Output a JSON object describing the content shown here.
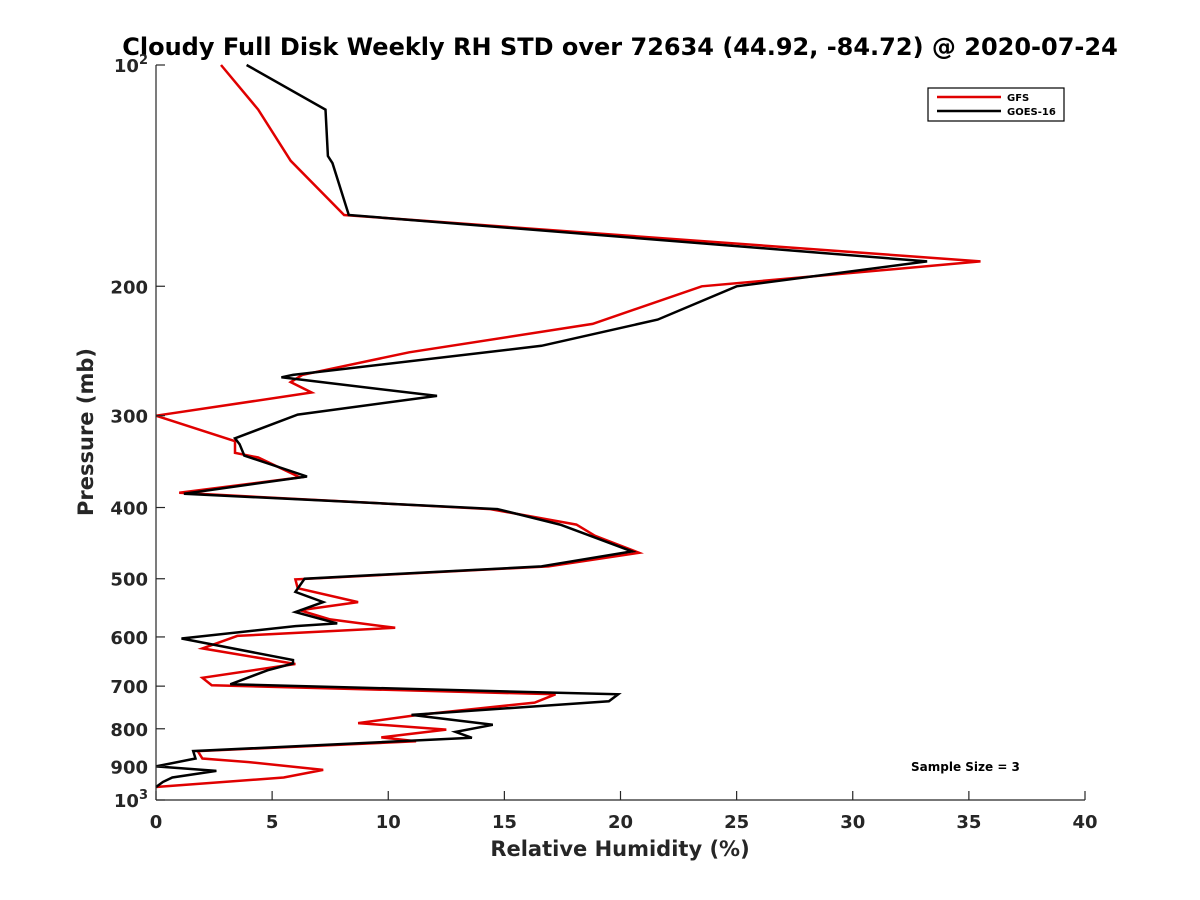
{
  "chart_data": {
    "type": "line",
    "title": "Cloudy Full Disk Weekly RH STD over 72634 (44.92, -84.72) @ 2020-07-24",
    "xlabel": "Relative Humidity (%)",
    "ylabel": "Pressure (mb)",
    "xlim": [
      0,
      40
    ],
    "ylim": [
      100,
      1000
    ],
    "yscale": "log",
    "y_reversed": true,
    "x_ticks": [
      "0",
      "5",
      "10",
      "15",
      "20",
      "25",
      "30",
      "35",
      "40"
    ],
    "y_ticks": [
      {
        "value": 100,
        "base": "10",
        "exp": "2"
      },
      {
        "value": 200,
        "label": "200"
      },
      {
        "value": 300,
        "label": "300"
      },
      {
        "value": 400,
        "label": "400"
      },
      {
        "value": 500,
        "label": "500"
      },
      {
        "value": 600,
        "label": "600"
      },
      {
        "value": 700,
        "label": "700"
      },
      {
        "value": 800,
        "label": "800"
      },
      {
        "value": 900,
        "label": "900"
      },
      {
        "value": 1000,
        "base": "10",
        "exp": "3"
      }
    ],
    "grid": false,
    "legend_position": "top-right",
    "annotation": "Sample Size = 3",
    "series": [
      {
        "name": "GFS",
        "color": "#e00000",
        "points": [
          [
            2.8,
            100
          ],
          [
            4.4,
            115
          ],
          [
            5.8,
            135
          ],
          [
            8.1,
            160
          ],
          [
            35.5,
            185
          ],
          [
            23.5,
            200
          ],
          [
            18.8,
            225
          ],
          [
            10.9,
            246
          ],
          [
            6.3,
            264
          ],
          [
            5.8,
            270
          ],
          [
            6.7,
            279
          ],
          [
            0.0,
            300
          ],
          [
            3.4,
            325
          ],
          [
            3.4,
            337
          ],
          [
            4.4,
            342
          ],
          [
            6.2,
            364
          ],
          [
            1.0,
            382
          ],
          [
            14.4,
            402
          ],
          [
            18.1,
            422
          ],
          [
            18.9,
            437
          ],
          [
            20.8,
            461
          ],
          [
            16.9,
            481
          ],
          [
            6.0,
            501
          ],
          [
            6.1,
            515
          ],
          [
            8.7,
            538
          ],
          [
            6.2,
            552
          ],
          [
            7.5,
            568
          ],
          [
            10.3,
            583
          ],
          [
            3.5,
            598
          ],
          [
            2.0,
            622
          ],
          [
            6.0,
            653
          ],
          [
            2.0,
            682
          ],
          [
            2.4,
            698
          ],
          [
            17.2,
            718
          ],
          [
            16.3,
            737
          ],
          [
            11.3,
            766
          ],
          [
            8.7,
            786
          ],
          [
            12.5,
            802
          ],
          [
            9.7,
            822
          ],
          [
            11.2,
            832
          ],
          [
            1.8,
            858
          ],
          [
            2.0,
            878
          ],
          [
            4.0,
            888
          ],
          [
            7.2,
            910
          ],
          [
            5.5,
            932
          ],
          [
            0.0,
            960
          ]
        ]
      },
      {
        "name": "GOES-16",
        "color": "#000000",
        "points": [
          [
            3.9,
            100
          ],
          [
            7.3,
            115
          ],
          [
            7.4,
            133
          ],
          [
            7.6,
            136
          ],
          [
            8.3,
            160
          ],
          [
            33.2,
            185
          ],
          [
            25.0,
            200
          ],
          [
            21.6,
            222
          ],
          [
            16.6,
            241
          ],
          [
            5.9,
            264
          ],
          [
            5.4,
            266
          ],
          [
            12.1,
            282
          ],
          [
            6.1,
            299
          ],
          [
            3.4,
            322
          ],
          [
            3.6,
            328
          ],
          [
            3.8,
            340
          ],
          [
            6.5,
            363
          ],
          [
            1.2,
            383
          ],
          [
            14.7,
            402
          ],
          [
            17.4,
            422
          ],
          [
            18.7,
            437
          ],
          [
            20.5,
            459
          ],
          [
            16.6,
            481
          ],
          [
            6.4,
            500
          ],
          [
            6.0,
            521
          ],
          [
            7.2,
            538
          ],
          [
            6.0,
            555
          ],
          [
            7.8,
            575
          ],
          [
            6.0,
            580
          ],
          [
            1.1,
            603
          ],
          [
            5.9,
            645
          ],
          [
            5.9,
            652
          ],
          [
            4.8,
            666
          ],
          [
            3.2,
            696
          ],
          [
            19.9,
            718
          ],
          [
            19.5,
            734
          ],
          [
            11.0,
            766
          ],
          [
            14.5,
            790
          ],
          [
            12.9,
            808
          ],
          [
            13.6,
            823
          ],
          [
            1.6,
            858
          ],
          [
            1.7,
            878
          ],
          [
            0.0,
            900
          ],
          [
            2.6,
            913
          ],
          [
            0.7,
            932
          ],
          [
            0.3,
            945
          ],
          [
            0.0,
            960
          ]
        ]
      }
    ]
  }
}
